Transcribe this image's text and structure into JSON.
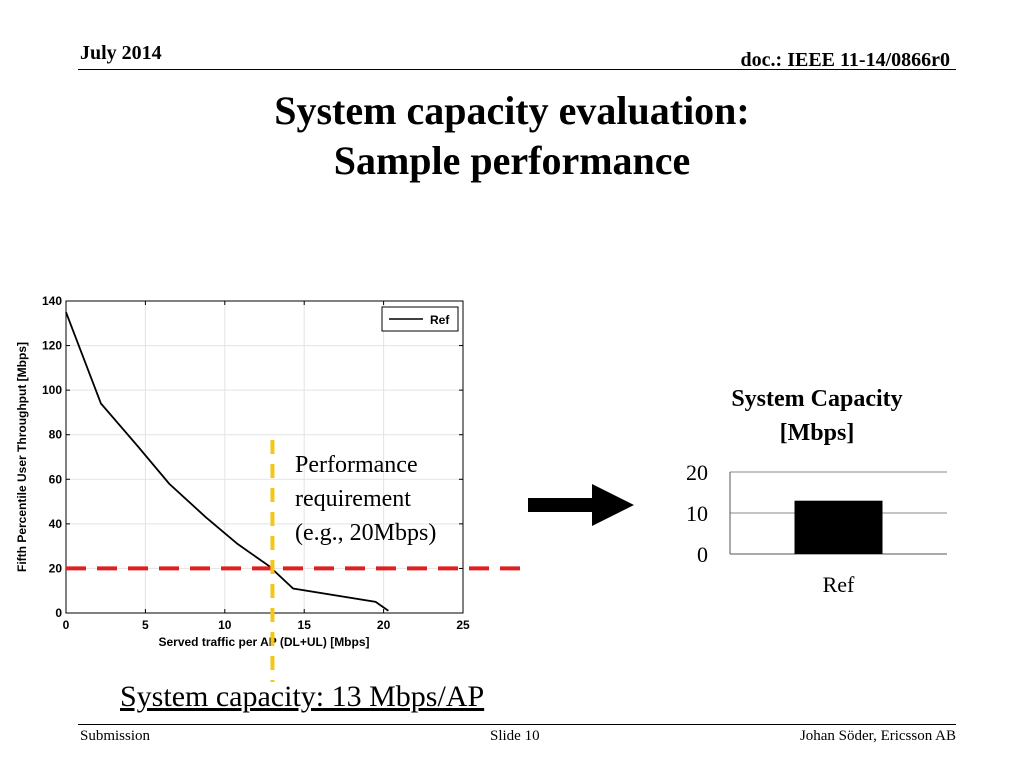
{
  "header": {
    "date": "July 2014",
    "doc": "doc.: IEEE 11-14/0866r0"
  },
  "title": {
    "line1": "System capacity evaluation:",
    "line2": "Sample performance"
  },
  "annotation": {
    "line1": "Performance",
    "line2": "requirement",
    "line3": "(e.g., 20Mbps)"
  },
  "result_text": "System capacity: 13 Mbps/AP",
  "footer": {
    "left": "Submission",
    "center": "Slide 10",
    "right": "Johan Söder, Ericsson AB"
  },
  "colors": {
    "requirement_line": "#e02020",
    "capacity_line": "#f5c518",
    "curve": "#000000",
    "bar": "#000000"
  },
  "chart_data": [
    {
      "type": "line",
      "xlabel": "Served traffic per AP (DL+UL) [Mbps]",
      "ylabel": "Fifth Percentile User Throughput [Mbps]",
      "xlim": [
        0,
        25
      ],
      "ylim": [
        0,
        140
      ],
      "xticks": [
        0,
        5,
        10,
        15,
        20,
        25
      ],
      "yticks": [
        0,
        20,
        40,
        60,
        80,
        100,
        120,
        140
      ],
      "grid": true,
      "legend": "top-right",
      "series": [
        {
          "name": "Ref",
          "x": [
            0,
            2.2,
            4.5,
            6.5,
            8.8,
            10.8,
            12.8,
            14.3,
            19.5,
            20.3
          ],
          "y": [
            135,
            94,
            75,
            58,
            43,
            31,
            21,
            11,
            5,
            1
          ]
        }
      ],
      "annotations": {
        "requirement_y": 20,
        "capacity_x": 13
      }
    },
    {
      "type": "bar",
      "title": "System Capacity [Mbps]",
      "title_lines": [
        "System Capacity",
        "[Mbps]"
      ],
      "categories": [
        "Ref"
      ],
      "values": [
        13
      ],
      "ylim": [
        0,
        20
      ],
      "yticks": [
        0,
        10,
        20
      ],
      "grid": true
    }
  ]
}
